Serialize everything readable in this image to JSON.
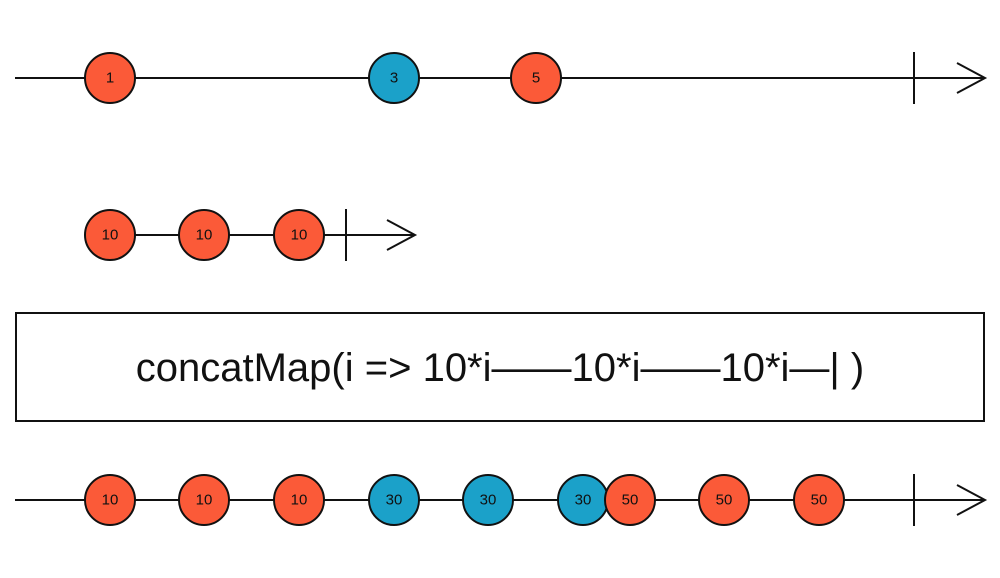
{
  "timelines": [
    {
      "marbles": [
        {
          "label": "1",
          "color": "#fb5a38"
        },
        {
          "label": "3",
          "color": "#1ba1c9"
        },
        {
          "label": "5",
          "color": "#fb5a38"
        }
      ]
    },
    {
      "marbles": [
        {
          "label": "10",
          "color": "#fb5a38"
        },
        {
          "label": "10",
          "color": "#fb5a38"
        },
        {
          "label": "10",
          "color": "#fb5a38"
        }
      ]
    },
    {
      "marbles": [
        {
          "label": "10",
          "color": "#fb5a38"
        },
        {
          "label": "10",
          "color": "#fb5a38"
        },
        {
          "label": "10",
          "color": "#fb5a38"
        },
        {
          "label": "30",
          "color": "#1ba1c9"
        },
        {
          "label": "30",
          "color": "#1ba1c9"
        },
        {
          "label": "30",
          "color": "#1ba1c9"
        },
        {
          "label": "50",
          "color": "#fb5a38"
        },
        {
          "label": "50",
          "color": "#fb5a38"
        },
        {
          "label": "50",
          "color": "#fb5a38"
        }
      ]
    }
  ],
  "operator": {
    "label": "concatMap(i => 10*i——10*i——10*i—| )"
  }
}
